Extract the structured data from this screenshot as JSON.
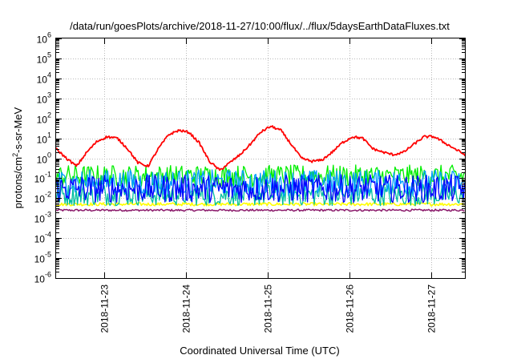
{
  "chart_data": {
    "type": "line",
    "title": "/data/run/goesPlots/archive/2018-11-27/10:00/flux/../flux/5daysEarthDataFluxes.txt",
    "xlabel": "Coordinated Universal Time (UTC)",
    "ylabel": {
      "base": "protons/cm",
      "sup": "2",
      "rest": "-s-sr-MeV"
    },
    "y_scale": "log",
    "ylim_exponent": [
      -6,
      6
    ],
    "y_ticks": [
      {
        "base": "10",
        "exp": "-6"
      },
      {
        "base": "10",
        "exp": "-5"
      },
      {
        "base": "10",
        "exp": "-4"
      },
      {
        "base": "10",
        "exp": "-3"
      },
      {
        "base": "10",
        "exp": "-2"
      },
      {
        "base": "10",
        "exp": "-1"
      },
      {
        "base": "10",
        "exp": "0"
      },
      {
        "base": "10",
        "exp": "1"
      },
      {
        "base": "10",
        "exp": "2"
      },
      {
        "base": "10",
        "exp": "3"
      },
      {
        "base": "10",
        "exp": "4"
      },
      {
        "base": "10",
        "exp": "5"
      },
      {
        "base": "10",
        "exp": "6"
      }
    ],
    "xlim": [
      "2018-11-22 10:00",
      "2018-11-27 10:00"
    ],
    "x_ticks": [
      "2018-11-23",
      "2018-11-24",
      "2018-11-25",
      "2018-11-26",
      "2018-11-27"
    ],
    "grid": true,
    "legend": "none",
    "series": [
      {
        "color": "#ff0000",
        "x": [
          "2018-11-22 10:00",
          "2018-11-22 13:00",
          "2018-11-22 16:00",
          "2018-11-22 19:00",
          "2018-11-22 22:00",
          "2018-11-23 01:00",
          "2018-11-23 04:00",
          "2018-11-23 07:00",
          "2018-11-23 10:00",
          "2018-11-23 13:00",
          "2018-11-23 16:00",
          "2018-11-23 19:00",
          "2018-11-23 22:00",
          "2018-11-24 01:00",
          "2018-11-24 04:00",
          "2018-11-24 07:00",
          "2018-11-24 10:00",
          "2018-11-24 13:00",
          "2018-11-24 16:00",
          "2018-11-24 19:00",
          "2018-11-24 22:00",
          "2018-11-25 01:00",
          "2018-11-25 04:00",
          "2018-11-25 07:00",
          "2018-11-25 10:00",
          "2018-11-25 13:00",
          "2018-11-25 16:00",
          "2018-11-25 19:00",
          "2018-11-25 22:00",
          "2018-11-26 01:00",
          "2018-11-26 04:00",
          "2018-11-26 07:00",
          "2018-11-26 10:00",
          "2018-11-26 13:00",
          "2018-11-26 16:00",
          "2018-11-26 19:00",
          "2018-11-26 22:00",
          "2018-11-27 01:00",
          "2018-11-27 04:00",
          "2018-11-27 07:00",
          "2018-11-27 10:00"
        ],
        "y": [
          3,
          1,
          0.4,
          2,
          7,
          12,
          10,
          3,
          0.6,
          0.4,
          3,
          15,
          25,
          20,
          6,
          0.7,
          0.25,
          0.6,
          1.5,
          5,
          20,
          40,
          25,
          5,
          1,
          0.7,
          0.8,
          2,
          6,
          12,
          10,
          3,
          2,
          1.5,
          2,
          5,
          12,
          12,
          6,
          3,
          1.5
        ]
      },
      {
        "color": "#00ee00",
        "x": [
          "2018-11-22 10:00",
          "2018-11-27 10:00"
        ],
        "y": [
          0.13,
          0.13
        ]
      },
      {
        "color": "#009dff",
        "x": [
          "2018-11-22 10:00",
          "2018-11-27 10:00"
        ],
        "y": [
          0.06,
          0.06
        ]
      },
      {
        "color": "#0000ff",
        "x": [
          "2018-11-22 10:00",
          "2018-11-27 10:00"
        ],
        "y": [
          0.03,
          0.03
        ]
      },
      {
        "color": "#00c0a0",
        "x": [
          "2018-11-22 10:00",
          "2018-11-27 10:00"
        ],
        "y": [
          0.015,
          0.015
        ]
      },
      {
        "color": "#ffff00",
        "x": [
          "2018-11-22 10:00",
          "2018-11-27 10:00"
        ],
        "y": [
          0.005,
          0.005
        ]
      },
      {
        "color": "#8b1a6b",
        "x": [
          "2018-11-22 10:00",
          "2018-11-27 10:00"
        ],
        "y": [
          0.0025,
          0.0025
        ]
      }
    ]
  }
}
